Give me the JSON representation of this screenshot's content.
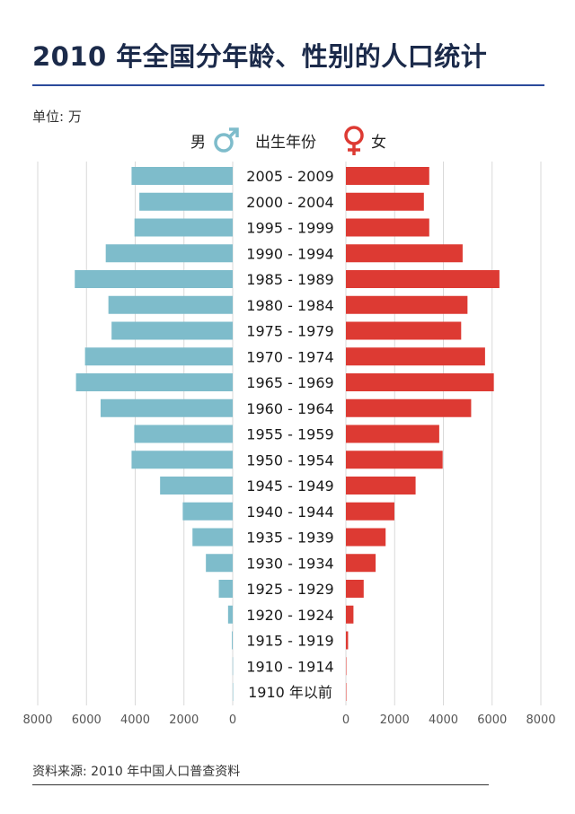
{
  "title": "2010 年全国分年龄、性别的人口统计",
  "unit_label": "单位: 万",
  "legend": {
    "male": "男",
    "center": "出生年份",
    "female": "女",
    "male_icon": "male-symbol-icon",
    "female_icon": "female-symbol-icon"
  },
  "source": "资料来源: 2010 年中国人口普查资料",
  "colors": {
    "male": "#7ebccb",
    "female": "#dd3a33",
    "title_rule": "#2b4a9b",
    "grid": "#d9d9d9"
  },
  "chart_data": {
    "type": "bar",
    "orientation": "horizontal-population-pyramid",
    "categories": [
      "2005 - 2009",
      "2000 - 2004",
      "1995 - 1999",
      "1990 - 1994",
      "1985 - 1989",
      "1980 - 1984",
      "1975 - 1979",
      "1970 - 1974",
      "1965 - 1969",
      "1960 - 1964",
      "1955 - 1959",
      "1950 - 1954",
      "1945 - 1949",
      "1940 - 1944",
      "1935 - 1939",
      "1930 - 1934",
      "1925 - 1929",
      "1920 - 1924",
      "1915 - 1919",
      "1910 - 1914",
      "1910 年以前"
    ],
    "series": [
      {
        "name": "男",
        "values": [
          4150,
          3830,
          4030,
          5210,
          6480,
          5100,
          4970,
          6060,
          6430,
          5420,
          4040,
          4150,
          2980,
          2050,
          1650,
          1100,
          570,
          190,
          35,
          6,
          1
        ]
      },
      {
        "name": "女",
        "values": [
          3420,
          3200,
          3420,
          4790,
          6300,
          4990,
          4730,
          5710,
          6070,
          5140,
          3830,
          3970,
          2860,
          1990,
          1630,
          1220,
          730,
          310,
          90,
          15,
          3
        ]
      }
    ],
    "ticks_male": [
      "8000",
      "6000",
      "4000",
      "2000",
      "0"
    ],
    "ticks_female": [
      "0",
      "2000",
      "4000",
      "6000",
      "8000"
    ],
    "xlim": [
      0,
      8000
    ],
    "grid": true
  }
}
